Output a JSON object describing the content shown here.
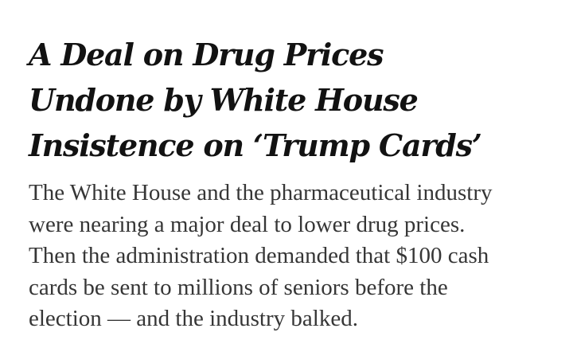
{
  "article": {
    "headline": "A Deal on Drug Prices\nUndone by White House\nInsistence on ‘Trump Cards’",
    "summary": "The White House and the pharmaceutical industry\nwere nearing a major deal to lower drug prices.\nThen the administration demanded that $100 cash\ncards be sent to millions of seniors before the\nelection — and the industry balked."
  }
}
